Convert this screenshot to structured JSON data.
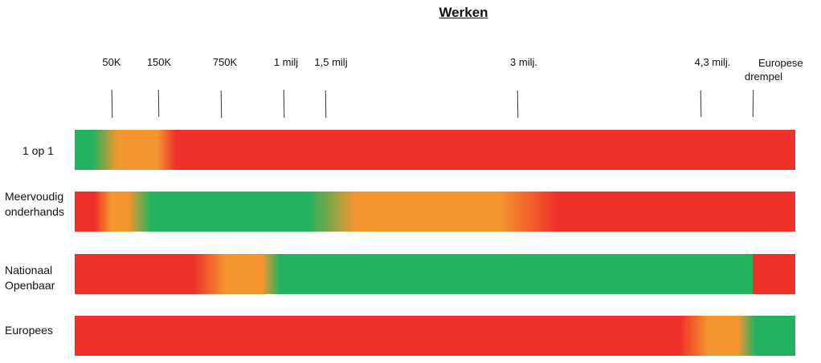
{
  "title": "Werken",
  "thresholds": [
    {
      "label": "50K"
    },
    {
      "label": "150K"
    },
    {
      "label": "750K"
    },
    {
      "label": "1 milj"
    },
    {
      "label": "1,5 milj"
    },
    {
      "label": "3 milj."
    },
    {
      "label": "4,3 milj."
    },
    {
      "label_line1": "Europese",
      "label_line2": "drempel"
    }
  ],
  "rows": [
    {
      "label": "1 op 1"
    },
    {
      "label_line1": "Meervoudig",
      "label_line2": "onderhands"
    },
    {
      "label_line1": "Nationaal",
      "label_line2": "Openbaar"
    },
    {
      "label": "Europees"
    }
  ],
  "colors": {
    "green": "#23b35e",
    "orange": "#f5952f",
    "red": "#ee3229"
  }
}
